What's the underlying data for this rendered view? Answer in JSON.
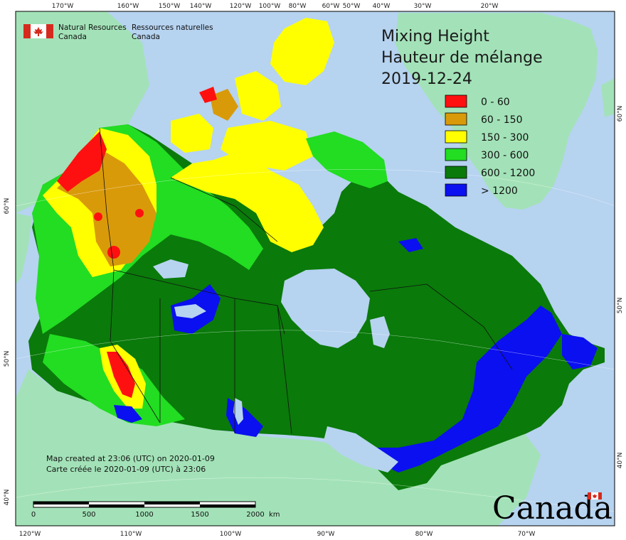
{
  "title": {
    "line1": "Mixing Height",
    "line2": "Hauteur de mélange",
    "date": "2019-12-24"
  },
  "agency": {
    "en_line1": "Natural Resources",
    "en_line2": "Canada",
    "fr_line1": "Ressources naturelles",
    "fr_line2": "Canada"
  },
  "legend": [
    {
      "label": "0 - 60",
      "color": "#ff1010"
    },
    {
      "label": "60 - 150",
      "color": "#d99a0a"
    },
    {
      "label": "150 - 300",
      "color": "#ffff00"
    },
    {
      "label": "300 - 600",
      "color": "#22dd22"
    },
    {
      "label": "600 - 1200",
      "color": "#0a7a0a"
    },
    {
      "label": "> 1200",
      "color": "#0a10f0"
    }
  ],
  "top_ticks": [
    "170°W",
    "160°W",
    "150°W",
    "140°W",
    "120°W",
    "100°W",
    "80°W",
    "60°W",
    "50°W",
    "40°W",
    "30°W",
    "20°W"
  ],
  "bottom_ticks": [
    "120°W",
    "110°W",
    "100°W",
    "90°W",
    "80°W",
    "70°W"
  ],
  "left_ticks": [
    "60°N",
    "50°N",
    "40°N"
  ],
  "right_ticks": [
    "60°N",
    "50°N",
    "40°N"
  ],
  "note": {
    "en": "Map created at 23:06 (UTC) on 2020-01-09",
    "fr": "Carte créée le 2020-01-09 (UTC) à 23:06"
  },
  "scale": {
    "labels": [
      "0",
      "500",
      "1000",
      "1500",
      "2000"
    ],
    "unit": "km"
  },
  "wordmark": "Canada",
  "colors": {
    "ocean": "#b6d3f0",
    "foreign_land": "#a3e2b8",
    "frame": "#000000"
  }
}
